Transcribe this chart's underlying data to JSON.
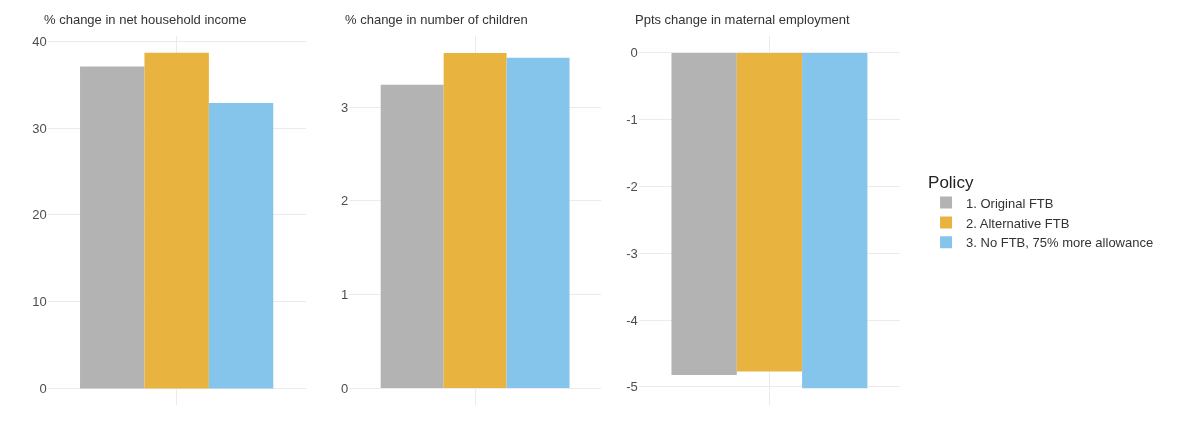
{
  "chart_data": [
    {
      "type": "bar",
      "title": "% change in net household income",
      "categories": [
        null
      ],
      "series": [
        {
          "color": "#b3b3b3",
          "values": [
            37.1
          ]
        },
        {
          "color": "#e8b43f",
          "values": [
            38.7
          ]
        },
        {
          "color": "#85c5ec",
          "values": [
            32.9
          ]
        }
      ],
      "ylim": [
        -1.9,
        40.6
      ],
      "yticks": [
        0,
        10,
        20,
        30,
        40
      ],
      "grid": true
    },
    {
      "type": "bar",
      "title": "% change in number of children",
      "categories": [
        null
      ],
      "series": [
        {
          "color": "#b3b3b3",
          "values": [
            3.24
          ]
        },
        {
          "color": "#e8b43f",
          "values": [
            3.58
          ]
        },
        {
          "color": "#85c5ec",
          "values": [
            3.53
          ]
        }
      ],
      "ylim": [
        -0.18,
        3.76
      ],
      "yticks": [
        0,
        1,
        2,
        3
      ],
      "grid": true
    },
    {
      "type": "bar",
      "title": "Ppts change in maternal employment",
      "categories": [
        null
      ],
      "legend_title": "Policy",
      "series": [
        {
          "name": "1. Original FTB",
          "color": "#b3b3b3",
          "values": [
            -4.82
          ]
        },
        {
          "name": "2. Alternative FTB",
          "color": "#e8b43f",
          "values": [
            -4.77
          ]
        },
        {
          "name": "3. No FTB, 75% more allowance",
          "color": "#85c5ec",
          "values": [
            -5.02
          ]
        }
      ],
      "ylim": [
        -5.27,
        0.25
      ],
      "yticks": [
        -5,
        -4,
        -3,
        -2,
        -1,
        0
      ],
      "grid": true,
      "legend": "right"
    }
  ]
}
